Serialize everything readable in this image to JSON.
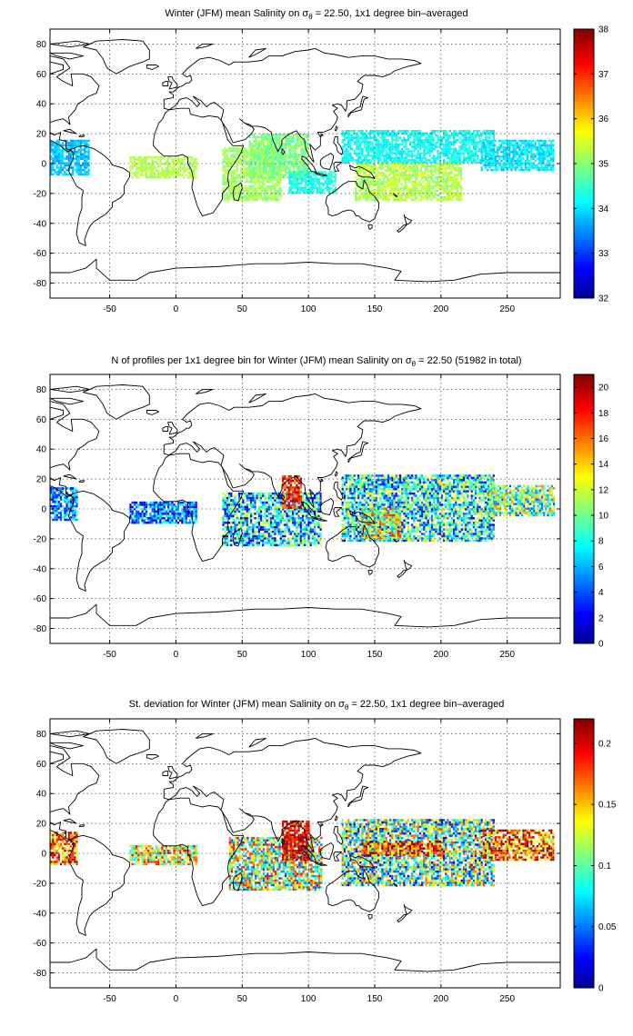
{
  "chart_data": [
    {
      "type": "heatmap",
      "title_parts": {
        "pre": "Winter (JFM) mean Salinity on ",
        "sym": "σ",
        "sub": "θ",
        "post": " = 22.50, 1x1 degree bin–averaged"
      },
      "xlim": [
        -95,
        290
      ],
      "ylim": [
        -90,
        90
      ],
      "xticks": [
        -50,
        0,
        50,
        100,
        150,
        200,
        250
      ],
      "yticks": [
        -80,
        -60,
        -40,
        -20,
        0,
        20,
        40,
        60,
        80
      ],
      "grid": true,
      "colormap": "jet",
      "colorbar": {
        "min": 32,
        "max": 38,
        "ticks": [
          32,
          33,
          34,
          35,
          36,
          37,
          38
        ]
      },
      "regions": [
        {
          "x": [
            -95,
            -65
          ],
          "y": [
            -8,
            16
          ],
          "value": 33.9,
          "spread": 0.3
        },
        {
          "x": [
            -35,
            15
          ],
          "y": [
            -10,
            5
          ],
          "value": 35.3,
          "spread": 0.2
        },
        {
          "x": [
            35,
            80
          ],
          "y": [
            -25,
            10
          ],
          "value": 35.2,
          "spread": 0.3
        },
        {
          "x": [
            55,
            100
          ],
          "y": [
            -10,
            20
          ],
          "value": 35.0,
          "spread": 0.4
        },
        {
          "x": [
            85,
            120
          ],
          "y": [
            -20,
            -5
          ],
          "value": 34.4,
          "spread": 0.3
        },
        {
          "x": [
            125,
            240
          ],
          "y": [
            0,
            22
          ],
          "value": 34.3,
          "spread": 0.3
        },
        {
          "x": [
            135,
            215
          ],
          "y": [
            -25,
            0
          ],
          "value": 35.3,
          "spread": 0.4
        },
        {
          "x": [
            230,
            285
          ],
          "y": [
            -5,
            15
          ],
          "value": 34.1,
          "spread": 0.3
        }
      ]
    },
    {
      "type": "heatmap",
      "title_parts": {
        "pre": "N of profiles per 1x1 degree bin for Winter (JFM) mean Salinity on ",
        "sym": "σ",
        "sub": "θ",
        "post": " = 22.50 (51982 in total)"
      },
      "xlim": [
        -95,
        290
      ],
      "ylim": [
        -90,
        90
      ],
      "xticks": [
        -50,
        0,
        50,
        100,
        150,
        200,
        250
      ],
      "yticks": [
        -80,
        -60,
        -40,
        -20,
        0,
        20,
        40,
        60,
        80
      ],
      "grid": true,
      "colormap": "jet",
      "colorbar": {
        "min": 0,
        "max": 21,
        "ticks": [
          0,
          2,
          4,
          6,
          8,
          10,
          12,
          14,
          16,
          18,
          20
        ]
      },
      "regions": [
        {
          "x": [
            -95,
            -75
          ],
          "y": [
            -8,
            14
          ],
          "value": 6,
          "spread": 4
        },
        {
          "x": [
            -35,
            15
          ],
          "y": [
            -10,
            5
          ],
          "value": 5,
          "spread": 4
        },
        {
          "x": [
            35,
            110
          ],
          "y": [
            -25,
            10
          ],
          "value": 7,
          "spread": 6
        },
        {
          "x": [
            80,
            95
          ],
          "y": [
            0,
            22
          ],
          "value": 18,
          "spread": 3
        },
        {
          "x": [
            125,
            240
          ],
          "y": [
            -22,
            22
          ],
          "value": 8,
          "spread": 6
        },
        {
          "x": [
            140,
            170
          ],
          "y": [
            -20,
            0
          ],
          "value": 12,
          "spread": 6
        },
        {
          "x": [
            235,
            285
          ],
          "y": [
            -5,
            15
          ],
          "value": 10,
          "spread": 6
        }
      ]
    },
    {
      "type": "heatmap",
      "title_parts": {
        "pre": "St. deviation for Winter (JFM) mean Salinity on ",
        "sym": "σ",
        "sub": "θ",
        "post": " = 22.50, 1x1 degree bin–averaged"
      },
      "xlim": [
        -95,
        290
      ],
      "ylim": [
        -90,
        90
      ],
      "xticks": [
        -50,
        0,
        50,
        100,
        150,
        200,
        250
      ],
      "yticks": [
        -80,
        -60,
        -40,
        -20,
        0,
        20,
        40,
        60,
        80
      ],
      "grid": true,
      "colormap": "jet",
      "colorbar": {
        "min": 0,
        "max": 0.22,
        "ticks": [
          0,
          0.05,
          0.1,
          0.15,
          0.2
        ]
      },
      "regions": [
        {
          "x": [
            -95,
            -75
          ],
          "y": [
            -8,
            14
          ],
          "value": 0.17,
          "spread": 0.05
        },
        {
          "x": [
            -35,
            15
          ],
          "y": [
            -8,
            5
          ],
          "value": 0.14,
          "spread": 0.06
        },
        {
          "x": [
            40,
            110
          ],
          "y": [
            -25,
            10
          ],
          "value": 0.12,
          "spread": 0.08
        },
        {
          "x": [
            80,
            100
          ],
          "y": [
            -5,
            22
          ],
          "value": 0.2,
          "spread": 0.03
        },
        {
          "x": [
            125,
            240
          ],
          "y": [
            -22,
            22
          ],
          "value": 0.1,
          "spread": 0.08
        },
        {
          "x": [
            140,
            200
          ],
          "y": [
            -2,
            8
          ],
          "value": 0.18,
          "spread": 0.05
        },
        {
          "x": [
            230,
            285
          ],
          "y": [
            -5,
            15
          ],
          "value": 0.17,
          "spread": 0.06
        }
      ]
    }
  ]
}
